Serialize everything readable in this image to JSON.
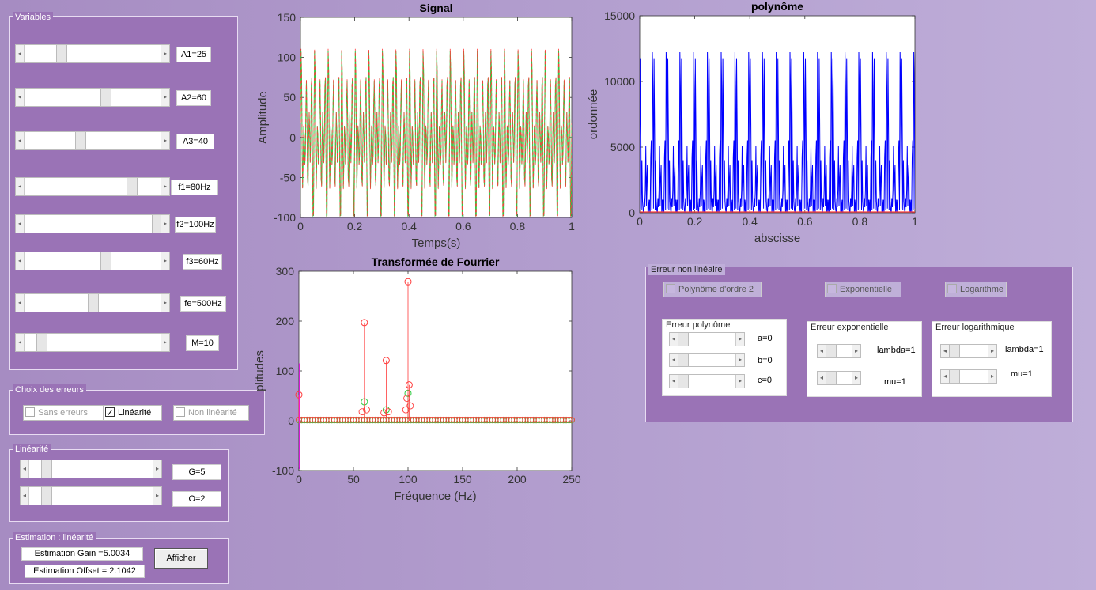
{
  "variables": {
    "title": "Variables",
    "sliders": [
      {
        "name": "A1",
        "label": "A1=25",
        "value": 0.25
      },
      {
        "name": "A2",
        "label": "A2=60",
        "value": 0.6
      },
      {
        "name": "A3",
        "label": "A3=40",
        "value": 0.4
      },
      {
        "name": "f1",
        "label": "f1=80Hz",
        "value": 0.8
      },
      {
        "name": "f2",
        "label": "f2=100Hz",
        "value": 1.0
      },
      {
        "name": "f3",
        "label": "f3=60Hz",
        "value": 0.6
      },
      {
        "name": "fe",
        "label": "fe=500Hz",
        "value": 0.5
      },
      {
        "name": "M",
        "label": "M=10",
        "value": 0.1
      }
    ]
  },
  "choix": {
    "title": "Choix des erreurs",
    "options": [
      {
        "label": "Sans erreurs",
        "checked": false
      },
      {
        "label": "Linéarité",
        "checked": true
      },
      {
        "label": "Non linéarité",
        "checked": false
      }
    ]
  },
  "linearite": {
    "title": "Linéarité",
    "sliders": [
      {
        "label": "G=5",
        "value": 0.12
      },
      {
        "label": "O=2",
        "value": 0.12
      }
    ]
  },
  "estimation": {
    "title": "Estimation : linéarité",
    "gain": "Estimation Gain =5.0034",
    "offset": "Estimation Offset = 2.1042",
    "button": "Afficher"
  },
  "nonlin": {
    "title": "Erreur non linéaire",
    "checks": [
      "Polynôme d'ordre 2",
      "Exponentielle",
      "Logarithme"
    ],
    "poly": {
      "title": "Erreur polynôme",
      "labels": [
        "a=0",
        "b=0",
        "c=0"
      ]
    },
    "expo": {
      "title": "Erreur exponentielle",
      "labels": [
        "lambda=1",
        "mu=1"
      ]
    },
    "log": {
      "title": "Erreur logarithmique",
      "labels": [
        "lambda=1",
        "mu=1"
      ]
    }
  },
  "chart_data": [
    {
      "type": "line",
      "title": "Signal",
      "xlabel": "Temps(s)",
      "ylabel": "Amplitude",
      "xlim": [
        0,
        1
      ],
      "ylim": [
        -100,
        150
      ],
      "xticks": [
        "0",
        "0.2",
        "0.4",
        "0.6",
        "0.8",
        "1"
      ],
      "yticks": [
        "-100",
        "-50",
        "0",
        "50",
        "100",
        "150"
      ],
      "series": [
        {
          "color": "#2ecc40"
        },
        {
          "color": "#ff3b3b"
        }
      ]
    },
    {
      "type": "line",
      "title": "polynôme",
      "xlabel": "abscisse",
      "ylabel": "ordonnée",
      "xlim": [
        0,
        1
      ],
      "ylim": [
        0,
        15000
      ],
      "xticks": [
        "0",
        "0.2",
        "0.4",
        "0.6",
        "0.8",
        "1"
      ],
      "yticks": [
        "0",
        "5000",
        "10000",
        "15000"
      ],
      "series": [
        {
          "color": "#0000ff"
        },
        {
          "color": "#ff3b3b"
        }
      ]
    },
    {
      "type": "scatter",
      "title": "Transformée de Fourrier",
      "xlabel": "Fréquence (Hz)",
      "ylabel": "plitudes",
      "xlim": [
        0,
        250
      ],
      "ylim": [
        -100,
        300
      ],
      "xticks": [
        "0",
        "50",
        "100",
        "150",
        "200",
        "250"
      ],
      "yticks": [
        "-100",
        "0",
        "100",
        "200",
        "300"
      ],
      "peaks_red": [
        {
          "x": 0,
          "y": 52
        },
        {
          "x": 60,
          "y": 197
        },
        {
          "x": 80,
          "y": 121
        },
        {
          "x": 100,
          "y": 279
        },
        {
          "x": 101,
          "y": 72
        }
      ],
      "peaks_green": [
        {
          "x": 60,
          "y": 38
        },
        {
          "x": 80,
          "y": 22
        },
        {
          "x": 100,
          "y": 55
        }
      ],
      "series": [
        {
          "color": "#ff3b3b"
        },
        {
          "color": "#2ecc40"
        },
        {
          "color": "#ff00ff"
        }
      ]
    }
  ]
}
